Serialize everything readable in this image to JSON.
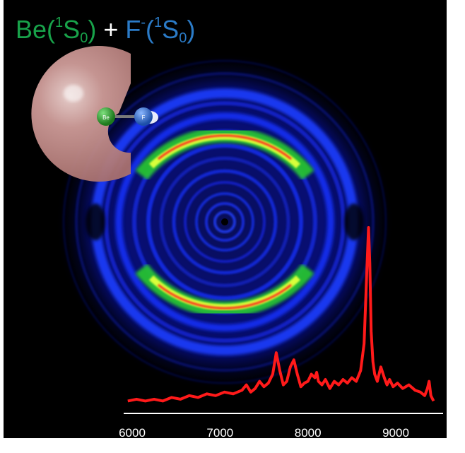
{
  "title": {
    "species1": {
      "symbol": "Be",
      "term_sup": "1",
      "term_main": "S",
      "term_sub": "0",
      "color": "#18a24a"
    },
    "plus": "+",
    "species2": {
      "symbol": "F",
      "charge": "-",
      "term_sup": "1",
      "term_main": "S",
      "term_sub": "0",
      "color": "#2b7bc7"
    }
  },
  "molecule": {
    "atom1_label": "Be",
    "atom2_label": "F",
    "atom1_color": "#2a9d2a",
    "atom2_color": "#2f6fd0",
    "orbital_color": "#c9908e"
  },
  "image": {
    "background": "#000000",
    "ring_color": "#1a2cff",
    "arc_colors": [
      "#33d13a",
      "#e8ff3a",
      "#ff2a1a"
    ]
  },
  "chart_data": {
    "type": "line",
    "xlabel": "",
    "ylabel": "",
    "x_ticks": [
      "6000",
      "7000",
      "8000",
      "9000"
    ],
    "xlim": [
      6000,
      9450
    ],
    "line_color": "#ff1a1a",
    "series": [
      {
        "x": [
          5950,
          6050,
          6150,
          6250,
          6350,
          6450,
          6550,
          6650,
          6750,
          6850,
          6950,
          7050,
          7150,
          7250,
          7300,
          7350,
          7400,
          7450,
          7500,
          7550,
          7600,
          7640,
          7680,
          7720,
          7760,
          7800,
          7840,
          7880,
          7920,
          7960,
          8000,
          8040,
          8080,
          8100,
          8120,
          8160,
          8200,
          8250,
          8300,
          8350,
          8400,
          8450,
          8500,
          8550,
          8600,
          8640,
          8670,
          8690,
          8705,
          8720,
          8740,
          8760,
          8790,
          8830,
          8870,
          8900,
          8930,
          8970,
          9020,
          9080,
          9150,
          9220,
          9280,
          9330,
          9360,
          9380,
          9400,
          9430
        ],
        "y": [
          0.03,
          0.04,
          0.03,
          0.04,
          0.03,
          0.05,
          0.04,
          0.06,
          0.05,
          0.07,
          0.06,
          0.08,
          0.07,
          0.09,
          0.12,
          0.08,
          0.1,
          0.14,
          0.11,
          0.13,
          0.18,
          0.3,
          0.2,
          0.12,
          0.14,
          0.22,
          0.26,
          0.18,
          0.11,
          0.13,
          0.14,
          0.18,
          0.16,
          0.19,
          0.14,
          0.12,
          0.15,
          0.1,
          0.14,
          0.12,
          0.15,
          0.13,
          0.16,
          0.14,
          0.2,
          0.35,
          0.75,
          1.0,
          0.8,
          0.42,
          0.25,
          0.18,
          0.14,
          0.22,
          0.16,
          0.12,
          0.15,
          0.11,
          0.13,
          0.1,
          0.12,
          0.09,
          0.08,
          0.06,
          0.1,
          0.14,
          0.06,
          0.03
        ]
      }
    ]
  }
}
